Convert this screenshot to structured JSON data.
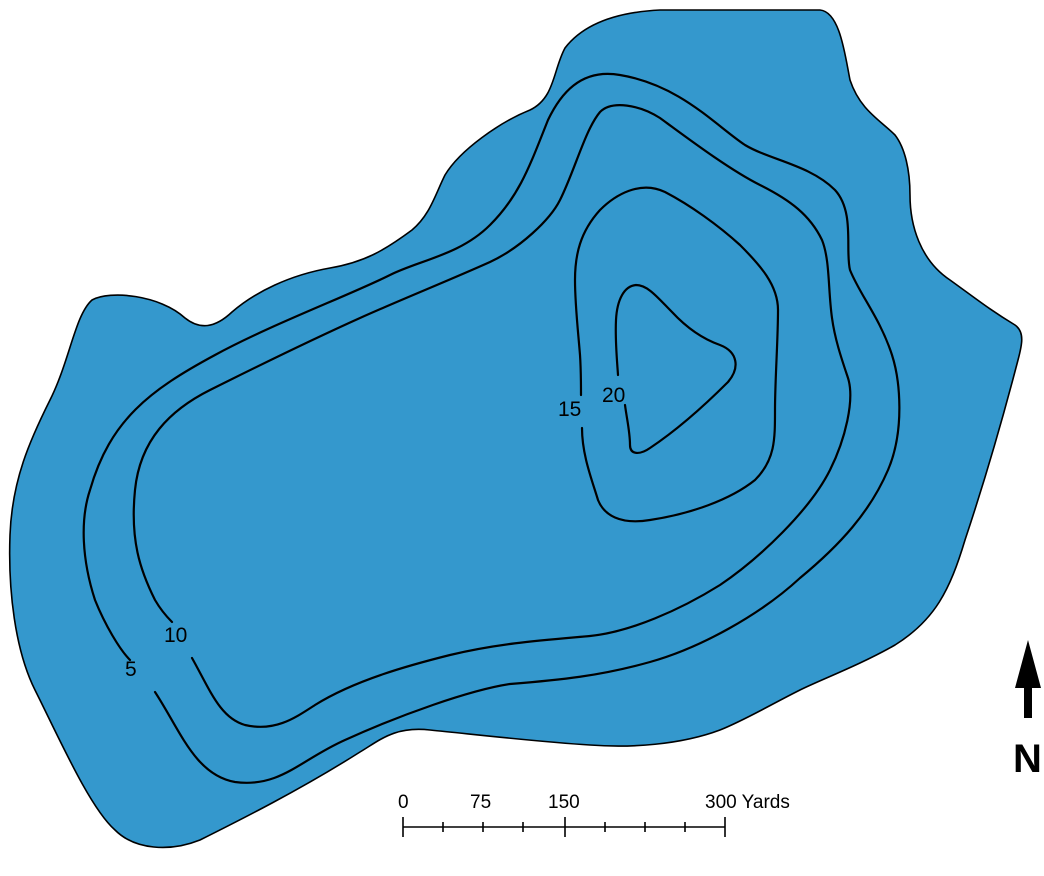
{
  "map": {
    "colors": {
      "water": "#3498CD",
      "contour": "#000000",
      "background": "#FFFFFF"
    },
    "contour_labels": {
      "c5": "5",
      "c10": "10",
      "c15": "15",
      "c20": "20"
    },
    "scale_bar": {
      "labels": {
        "l0": "0",
        "l75": "75",
        "l150": "150",
        "l300": "300 Yards"
      }
    },
    "north_arrow": {
      "letter": "N",
      "icon": "north-arrow-icon"
    }
  }
}
